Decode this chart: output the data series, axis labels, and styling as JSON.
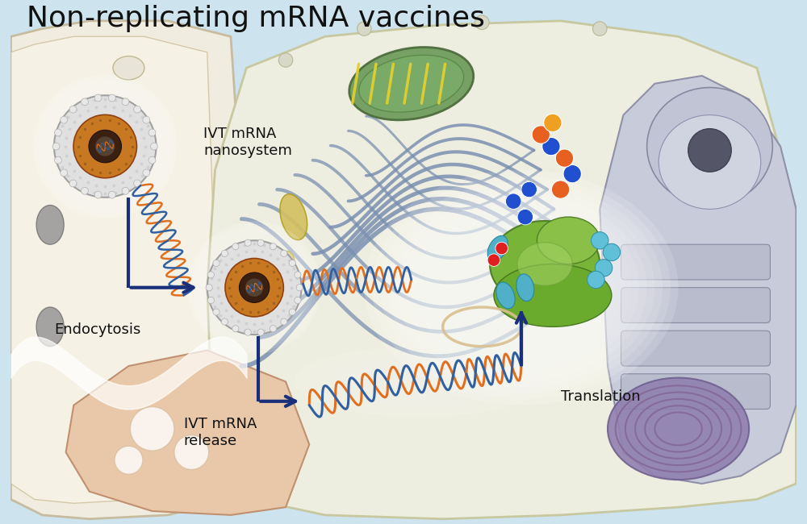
{
  "title": "Non-replicating mRNA vaccines",
  "title_fontsize": 26,
  "bg_color": "#cde3ee",
  "arrow_color": "#1a2f7a",
  "label_fontsize": 13,
  "labels": {
    "ivt_nanosystem": "IVT mRNA\nnanosystem",
    "endocytosis": "Endocytosis",
    "ivt_release": "IVT mRNA\nrelease",
    "translation": "Translation"
  },
  "cell_fill": "#eeeee0",
  "cell_edge": "#c8c8a0",
  "outer_fill": "#f0ede0",
  "outer_edge": "#c8bca0",
  "nucleus_outer": "#c8ccd8",
  "nucleus_inner": "#b0b4c8",
  "nucleus_spot": "#606070",
  "er_color": "#8090b0",
  "golgi_color": "#8090b8",
  "mito_fill": "#88aa60",
  "mito_edge": "#507040",
  "lyso_color": "#9080b0",
  "nano_outer_fill": "#e0e0e0",
  "nano_outer_edge": "#a0a0a0",
  "nano_gold": "#c87820",
  "nano_dark": "#3a2010",
  "dna_strand1": "#e07020",
  "dna_strand2": "#3060a0",
  "dna_cross1": "#50a050",
  "dna_cross2": "#e8e040",
  "ribosome_fill": "#78b840",
  "ribosome_edge": "#508030",
  "peach_fill": "#e8c8a8",
  "peach_edge": "#c09070",
  "yellow_body": "#d4c060"
}
